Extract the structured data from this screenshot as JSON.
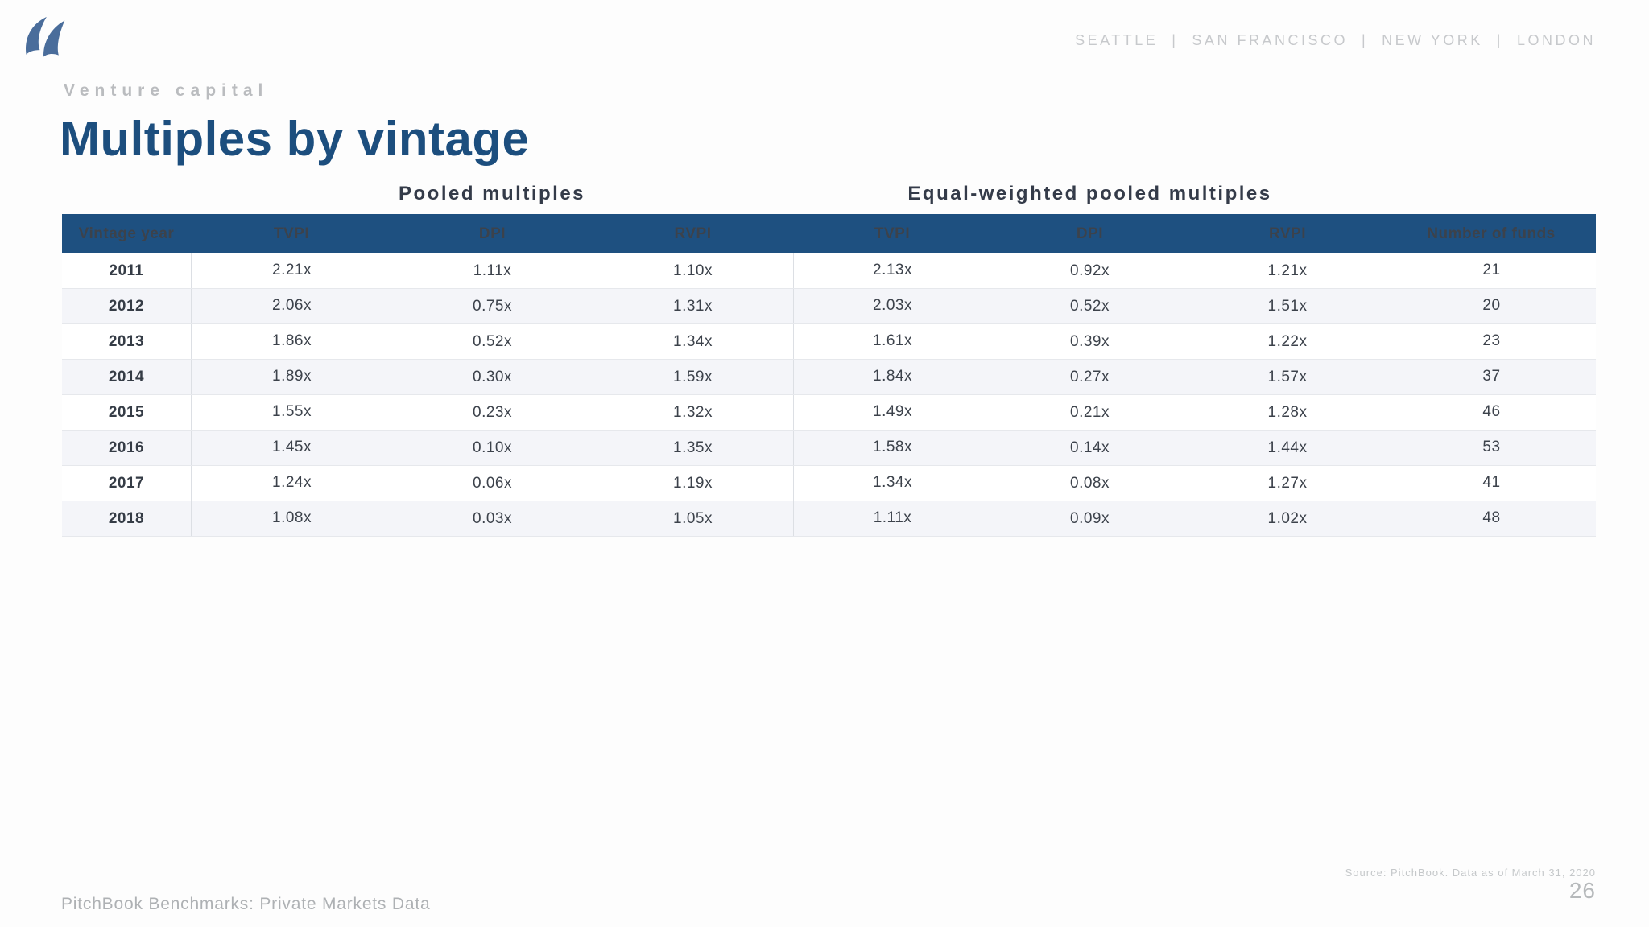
{
  "header": {
    "cities_line": "SEATTLE  |  SAN FRANCISCO  |  NEW YORK  |  LONDON",
    "logo_icon": "pitchbook-sails-icon"
  },
  "eyebrow": "Venture capital",
  "title": "Multiples by vintage",
  "table": {
    "groups": {
      "pooled": "Pooled multiples",
      "equal": "Equal-weighted pooled multiples"
    },
    "columns": [
      "Vintage year",
      "TVPI",
      "DPI",
      "RVPI",
      "TVPI",
      "DPI",
      "RVPI",
      "Number of funds"
    ],
    "rows": [
      [
        "2011",
        "2.21x",
        "1.11x",
        "1.10x",
        "2.13x",
        "0.92x",
        "1.21x",
        "21"
      ],
      [
        "2012",
        "2.06x",
        "0.75x",
        "1.31x",
        "2.03x",
        "0.52x",
        "1.51x",
        "20"
      ],
      [
        "2013",
        "1.86x",
        "0.52x",
        "1.34x",
        "1.61x",
        "0.39x",
        "1.22x",
        "23"
      ],
      [
        "2014",
        "1.89x",
        "0.30x",
        "1.59x",
        "1.84x",
        "0.27x",
        "1.57x",
        "37"
      ],
      [
        "2015",
        "1.55x",
        "0.23x",
        "1.32x",
        "1.49x",
        "0.21x",
        "1.28x",
        "46"
      ],
      [
        "2016",
        "1.45x",
        "0.10x",
        "1.35x",
        "1.58x",
        "0.14x",
        "1.44x",
        "53"
      ],
      [
        "2017",
        "1.24x",
        "0.06x",
        "1.19x",
        "1.34x",
        "0.08x",
        "1.27x",
        "41"
      ],
      [
        "2018",
        "1.08x",
        "0.03x",
        "1.05x",
        "1.11x",
        "0.09x",
        "1.02x",
        "48"
      ]
    ]
  },
  "footer": {
    "left": "PitchBook Benchmarks: Private Markets Data",
    "source": "Source: PitchBook. Data as of March 31, 2020",
    "page": "26"
  },
  "colors": {
    "table_header_bg": "#1e5080",
    "title_color": "#1c4e7e",
    "logo_color": "#4a6d9b",
    "stripe": "#f4f5f9"
  }
}
